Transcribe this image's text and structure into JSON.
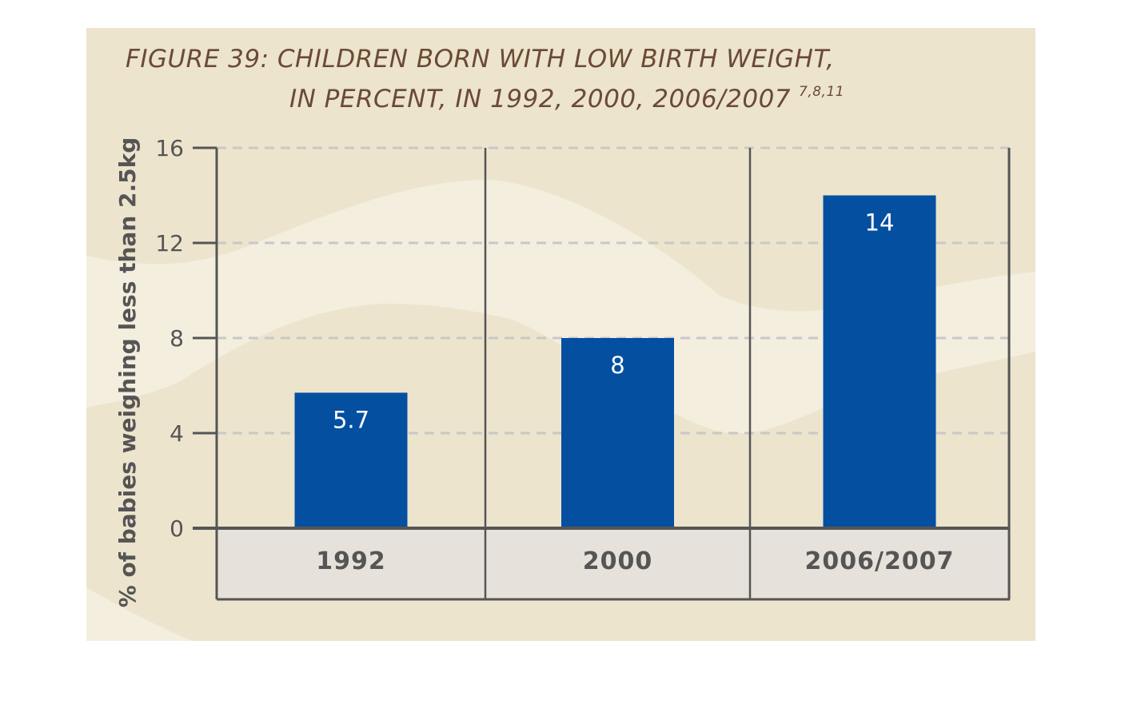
{
  "chart_data": {
    "type": "bar",
    "title_line1": "FIGURE 39: CHILDREN BORN WITH LOW BIRTH WEIGHT,",
    "title_line2": "IN PERCENT, IN 1992, 2000, 2006/2007",
    "title_refs": "7,8,11",
    "ylabel": "% of babies weighing less than 2.5kg",
    "xlabel": "",
    "categories": [
      "1992",
      "2000",
      "2006/2007"
    ],
    "values": [
      5.7,
      8,
      14
    ],
    "value_labels": [
      "5.7",
      "8",
      "14"
    ],
    "ylim": [
      0,
      16
    ],
    "yticks": [
      0,
      4,
      8,
      12,
      16
    ],
    "grid": true,
    "colors": {
      "bar": "#054fa1",
      "background": "#ece4cd",
      "background_wave": "#f4eedf",
      "category_band": "#e6e1da",
      "axis": "#555555",
      "grid": "#c8c8c8",
      "title": "#6b4a35"
    }
  }
}
